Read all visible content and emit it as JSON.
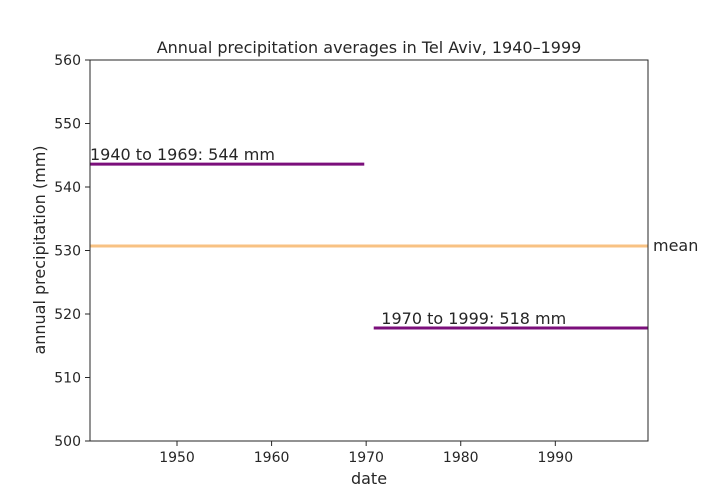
{
  "chart_data": {
    "type": "line",
    "title": "Annual precipitation averages in Tel Aviv, 1940–1999",
    "xlabel": "date",
    "ylabel": "annual precipitation (mm)",
    "xlim": [
      1940.8,
      1999.8
    ],
    "ylim": [
      500,
      560
    ],
    "xticks": [
      1950,
      1960,
      1970,
      1980,
      1990
    ],
    "yticks": [
      500,
      510,
      520,
      530,
      540,
      550,
      560
    ],
    "grid": false,
    "series": [
      {
        "x": [
          1940.8,
          1969.8
        ],
        "y": [
          543.6,
          543.6
        ],
        "color": "#7b0f7b"
      },
      {
        "x": [
          1970.8,
          1999.8
        ],
        "y": [
          517.8,
          517.8
        ],
        "color": "#7b0f7b"
      },
      {
        "x": [
          1940.8,
          1999.8
        ],
        "y": [
          530.7,
          530.7
        ],
        "color": "#f8c283"
      }
    ],
    "annotations": [
      {
        "text": "1940 to 1969:  544 mm",
        "x": 1940.8,
        "y": 543.6
      },
      {
        "text": "1970 to 1999:  518 mm",
        "x": 1971.6,
        "y": 517.8
      },
      {
        "text": "mean",
        "x": 1999.8,
        "y": 530.7
      }
    ]
  }
}
